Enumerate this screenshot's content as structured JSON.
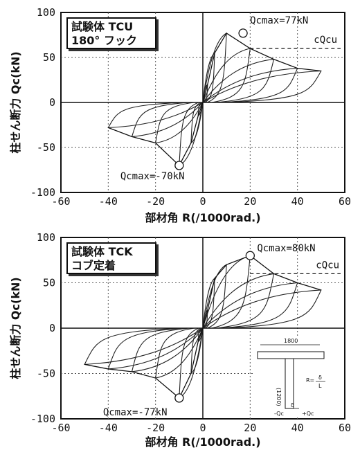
{
  "chart_data": [
    {
      "type": "line",
      "specimen_label": [
        "試験体 TCU",
        "180° フック"
      ],
      "xlabel": "部材角 R(/1000rad.)",
      "ylabel": "柱せん断力 Qc(kN)",
      "xlim": [
        -60,
        60
      ],
      "ylim": [
        -100,
        100
      ],
      "x_ticks": [
        "-60",
        "-40",
        "-20",
        "0",
        "20",
        "40",
        "60"
      ],
      "y_ticks": [
        "100",
        "50",
        "0",
        "-50",
        "-100"
      ],
      "grid": true,
      "reference_line": {
        "label": "cQcu",
        "y": 60,
        "style": "dashed"
      },
      "peaks": [
        {
          "label": "Qcmax=77kN",
          "x": 17,
          "y": 77
        },
        {
          "label": "Qcmax=-70kN",
          "x": -10,
          "y": -70
        }
      ],
      "hysteresis_envelope": {
        "x": [
          -40,
          -30,
          -20,
          -10,
          -5,
          -2,
          0,
          2,
          5,
          10,
          20,
          30,
          40,
          50
        ],
        "y": [
          -28,
          -38,
          -45,
          -70,
          -45,
          -15,
          0,
          20,
          55,
          77,
          60,
          48,
          38,
          35
        ]
      }
    },
    {
      "type": "line",
      "specimen_label": [
        "試験体 TCK",
        "コブ定着"
      ],
      "xlabel": "部材角 R(/1000rad.)",
      "ylabel": "柱せん断力 Qc(kN)",
      "xlim": [
        -60,
        60
      ],
      "ylim": [
        -100,
        100
      ],
      "x_ticks": [
        "-60",
        "-40",
        "-20",
        "0",
        "20",
        "40",
        "60"
      ],
      "y_ticks": [
        "100",
        "50",
        "0",
        "-50",
        "-100"
      ],
      "grid": true,
      "reference_line": {
        "label": "cQcu",
        "y": 60,
        "style": "dashed"
      },
      "peaks": [
        {
          "label": "Qcmax=80kN",
          "x": 20,
          "y": 80
        },
        {
          "label": "Qcmax=-77kN",
          "x": -10,
          "y": -77
        }
      ],
      "hysteresis_envelope": {
        "x": [
          -50,
          -40,
          -30,
          -20,
          -10,
          -5,
          -2,
          0,
          2,
          5,
          10,
          20,
          30,
          40,
          50
        ],
        "y": [
          -40,
          -45,
          -48,
          -55,
          -77,
          -50,
          -15,
          0,
          20,
          55,
          70,
          80,
          60,
          50,
          42
        ]
      },
      "inset": {
        "span_label": "1800",
        "height_label": "(1200)",
        "formula": [
          "R=",
          "δ",
          "L"
        ],
        "delta_label": "δ",
        "load_labels": [
          "-Qc",
          "+Qc"
        ]
      }
    }
  ]
}
